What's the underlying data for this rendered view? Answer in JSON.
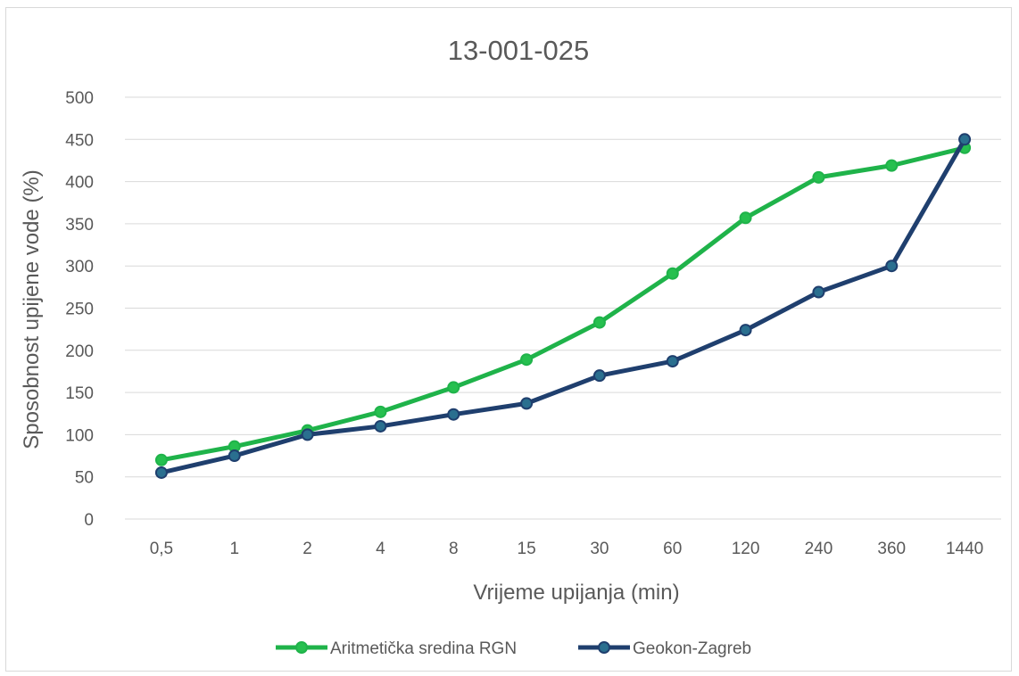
{
  "chart_data": {
    "type": "line",
    "title": "13-001-025",
    "xlabel": "Vrijeme upijanja (min)",
    "ylabel": "Sposobnost upijene vode (%)",
    "categories": [
      "0,5",
      "1",
      "2",
      "4",
      "8",
      "15",
      "30",
      "60",
      "120",
      "240",
      "360",
      "1440"
    ],
    "y_ticks": [
      "0",
      "50",
      "100",
      "150",
      "200",
      "250",
      "300",
      "350",
      "400",
      "450",
      "500"
    ],
    "ylim": [
      0,
      500
    ],
    "grid": true,
    "legend_position": "bottom",
    "series": [
      {
        "name": "Aritmetička sredina RGN",
        "color": "#1fb34a",
        "marker_color": "#26c04f",
        "values": [
          70,
          86,
          105,
          127,
          156,
          189,
          233,
          291,
          357,
          405,
          419,
          440
        ]
      },
      {
        "name": "Geokon-Zagreb",
        "color": "#1f3f6e",
        "marker_color": "#2a6f8f",
        "values": [
          55,
          75,
          100,
          110,
          124,
          137,
          170,
          187,
          224,
          269,
          300,
          450
        ]
      }
    ]
  }
}
